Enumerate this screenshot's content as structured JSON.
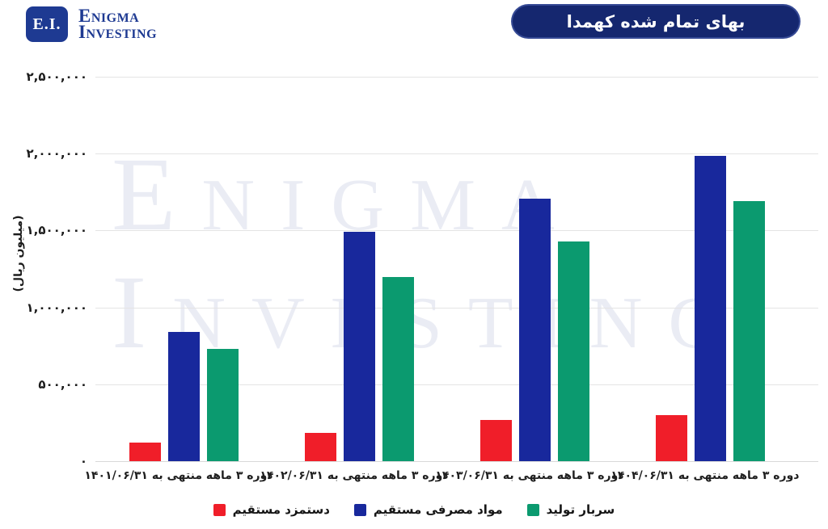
{
  "logo": {
    "monogram": "E.I.",
    "name_line1": "Enigma",
    "name_line2": "Investing"
  },
  "watermark": {
    "line1": "Enigma",
    "line2": "Investing"
  },
  "colors": {
    "pill_bg": "#15276F",
    "logo_navy": "#1E3A92",
    "grid": "#E4E4E4",
    "watermark": "#EAECF4",
    "red_series": "#F01E29",
    "blue_series": "#18289C",
    "green_series": "#0B9A6F"
  },
  "chart_data": {
    "type": "bar",
    "title": "بهای تمام شده کهمدا",
    "ylabel": "(میلیون ریال)",
    "ylim": [
      0,
      2500000
    ],
    "grid": "horizontal",
    "legend_position": "bottom",
    "yticks": [
      {
        "value": 0,
        "label": "۰"
      },
      {
        "value": 500000,
        "label": "۵۰۰,۰۰۰"
      },
      {
        "value": 1000000,
        "label": "۱,۰۰۰,۰۰۰"
      },
      {
        "value": 1500000,
        "label": "۱,۵۰۰,۰۰۰"
      },
      {
        "value": 2000000,
        "label": "۲,۰۰۰,۰۰۰"
      },
      {
        "value": 2500000,
        "label": "۲,۵۰۰,۰۰۰"
      }
    ],
    "categories": [
      "دوره ۳ ماهه منتهی به ۱۴۰۱/۰۶/۳۱",
      "دوره ۳ ماهه منتهی به ۱۴۰۲/۰۶/۳۱",
      "دوره ۳ ماهه منتهی به ۱۴۰۳/۰۶/۳۱",
      "دوره ۳ ماهه منتهی به ۱۴۰۴/۰۶/۳۱"
    ],
    "series": [
      {
        "name": "دستمزد مستقیم",
        "color": "#F01E29",
        "values": [
          120000,
          185000,
          270000,
          300000
        ]
      },
      {
        "name": "مواد مصرفی مستقیم",
        "color": "#18289C",
        "values": [
          840000,
          1490000,
          1705000,
          1985000
        ]
      },
      {
        "name": "سربار تولید",
        "color": "#0B9A6F",
        "values": [
          730000,
          1200000,
          1430000,
          1690000
        ]
      }
    ]
  }
}
